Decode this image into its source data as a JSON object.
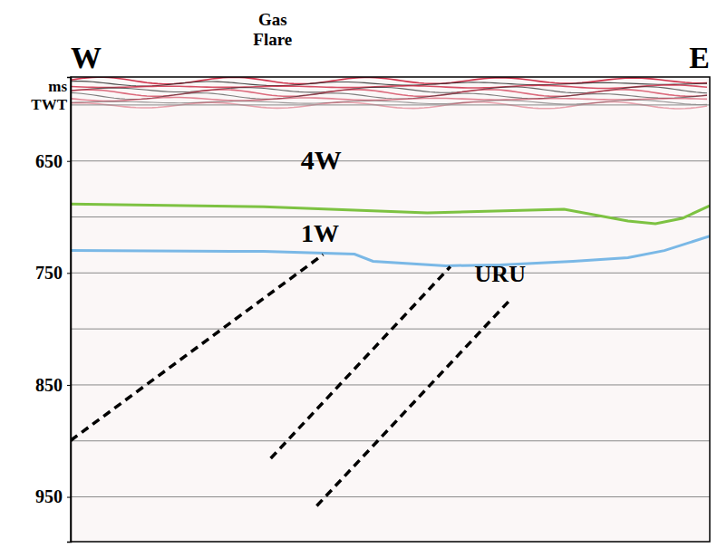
{
  "chart_data": {
    "type": "line",
    "y_label": "ms TWT",
    "header": [
      {
        "text": "W",
        "x": 0
      },
      {
        "text": "Gas Flare",
        "x": 31.6
      },
      {
        "text": "E",
        "x": 100
      }
    ],
    "xlim": [
      0,
      100
    ],
    "ylim": [
      575,
      990
    ],
    "yticks": [
      650,
      750,
      850,
      950
    ],
    "gridlines": [
      600,
      650,
      700,
      750,
      800,
      850,
      900,
      950
    ],
    "grid": true,
    "tick_labels": "y",
    "series": [
      {
        "color": "#7dc242",
        "line_style": "solid",
        "x": [
          0,
          30.2,
          55.8,
          77.2,
          87.2,
          91.5,
          95.7,
          100
        ],
        "values": [
          688.4,
          690.8,
          696.4,
          693.2,
          703.6,
          706,
          701.2,
          690
        ]
      },
      {
        "color": "#7ab8e6",
        "line_style": "solid",
        "x": [
          0,
          30.2,
          44.4,
          47.3,
          58.7,
          67.2,
          78.6,
          87.2,
          92.9,
          100
        ],
        "values": [
          730,
          730.8,
          733.2,
          739.6,
          743.6,
          742.8,
          739.6,
          736.4,
          730,
          717.2
        ]
      },
      {
        "color": "#000000",
        "line_style": "dashed",
        "x": [
          0,
          39.5
        ],
        "values": [
          899.6,
          733.6
        ]
      },
      {
        "color": "#000000",
        "line_style": "dashed",
        "x": [
          31.3,
          59.4
        ],
        "values": [
          915.6,
          744.4
        ]
      },
      {
        "color": "#000000",
        "line_style": "dashed",
        "x": [
          38.5,
          68.9
        ],
        "values": [
          958,
          773.2
        ]
      }
    ],
    "annotations": [
      {
        "text": "4W",
        "x": 39.2,
        "y": 651.6
      },
      {
        "text": "1W",
        "x": 39,
        "y": 717
      },
      {
        "text": "URU",
        "x": 67.2,
        "y": 753
      }
    ]
  }
}
